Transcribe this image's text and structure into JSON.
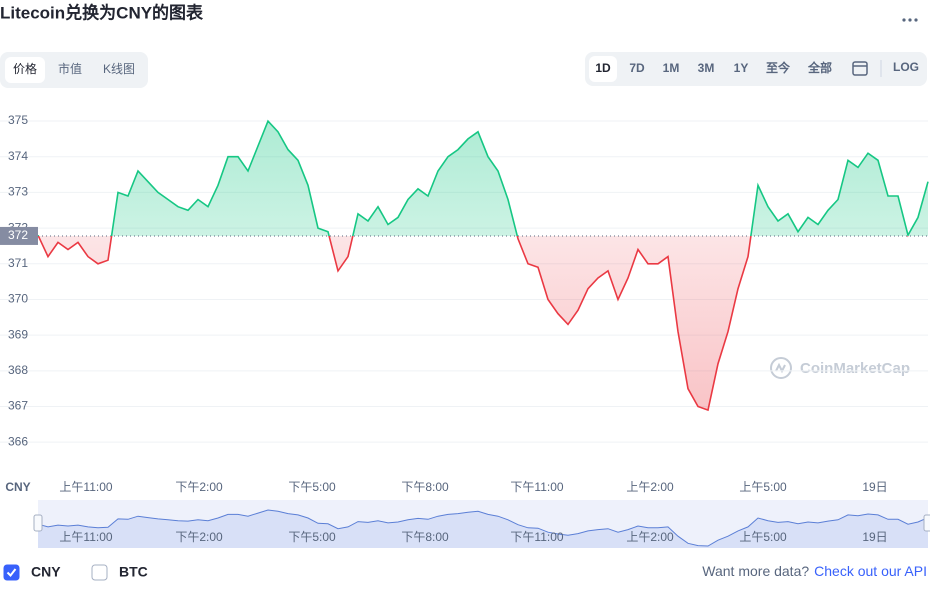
{
  "title": "Litecoin兑换为CNY的图表",
  "tabs": [
    "价格",
    "市值",
    "K线图"
  ],
  "active_tab": 0,
  "ranges": [
    "1D",
    "7D",
    "1M",
    "3M",
    "1Y",
    "至今",
    "全部"
  ],
  "active_range": 0,
  "scale_button": "LOG",
  "footer": {
    "text": "Want more data?",
    "link": "Check out our API"
  },
  "chart_data": {
    "type": "line",
    "x_unit_label": "CNY",
    "watermark": "CoinMarketCap",
    "series": [
      {
        "color_up": "#16c784",
        "color_down": "#ea3943",
        "navigator_color": "#5b7fd6",
        "values": [
          371.8,
          371.2,
          371.6,
          371.4,
          371.6,
          371.2,
          371.0,
          371.1,
          373.0,
          372.9,
          373.6,
          373.3,
          373.0,
          372.8,
          372.6,
          372.5,
          372.8,
          372.6,
          373.2,
          374.0,
          374.0,
          373.6,
          374.3,
          375.0,
          374.7,
          374.2,
          373.9,
          373.2,
          372.0,
          371.9,
          370.8,
          371.2,
          372.4,
          372.2,
          372.6,
          372.1,
          372.3,
          372.8,
          373.1,
          372.9,
          373.6,
          374.0,
          374.2,
          374.5,
          374.7,
          374.0,
          373.6,
          372.8,
          371.7,
          371.0,
          370.9,
          370.0,
          369.6,
          369.3,
          369.7,
          370.3,
          370.6,
          370.8,
          370.0,
          370.6,
          371.4,
          371.0,
          371.0,
          371.2,
          369.1,
          367.5,
          367.0,
          366.9,
          368.2,
          369.1,
          370.3,
          371.2,
          373.2,
          372.6,
          372.2,
          372.4,
          371.9,
          372.3,
          372.1,
          372.5,
          372.8,
          373.9,
          373.7,
          374.1,
          373.9,
          372.9,
          372.9,
          371.8,
          372.3,
          373.3
        ]
      }
    ],
    "baseline": {
      "value": 371.78,
      "label": "372"
    },
    "xlim": [
      0,
      89
    ],
    "xticks": [
      {
        "value": 4.8,
        "label": "上午11:00"
      },
      {
        "value": 16.1,
        "label": "下午2:00"
      },
      {
        "value": 27.4,
        "label": "下午5:00"
      },
      {
        "value": 38.7,
        "label": "下午8:00"
      },
      {
        "value": 49.9,
        "label": "下午11:00"
      },
      {
        "value": 61.2,
        "label": "上午2:00"
      },
      {
        "value": 72.5,
        "label": "上午5:00"
      },
      {
        "value": 83.7,
        "label": "19日"
      }
    ],
    "ylim": [
      365.08,
      375.59
    ],
    "yticks": [
      366,
      367,
      368,
      369,
      370,
      371,
      372,
      373,
      374,
      375
    ],
    "grid": true,
    "legend": [
      {
        "name": "CNY",
        "checked": true
      },
      {
        "name": "BTC",
        "checked": false
      }
    ]
  }
}
